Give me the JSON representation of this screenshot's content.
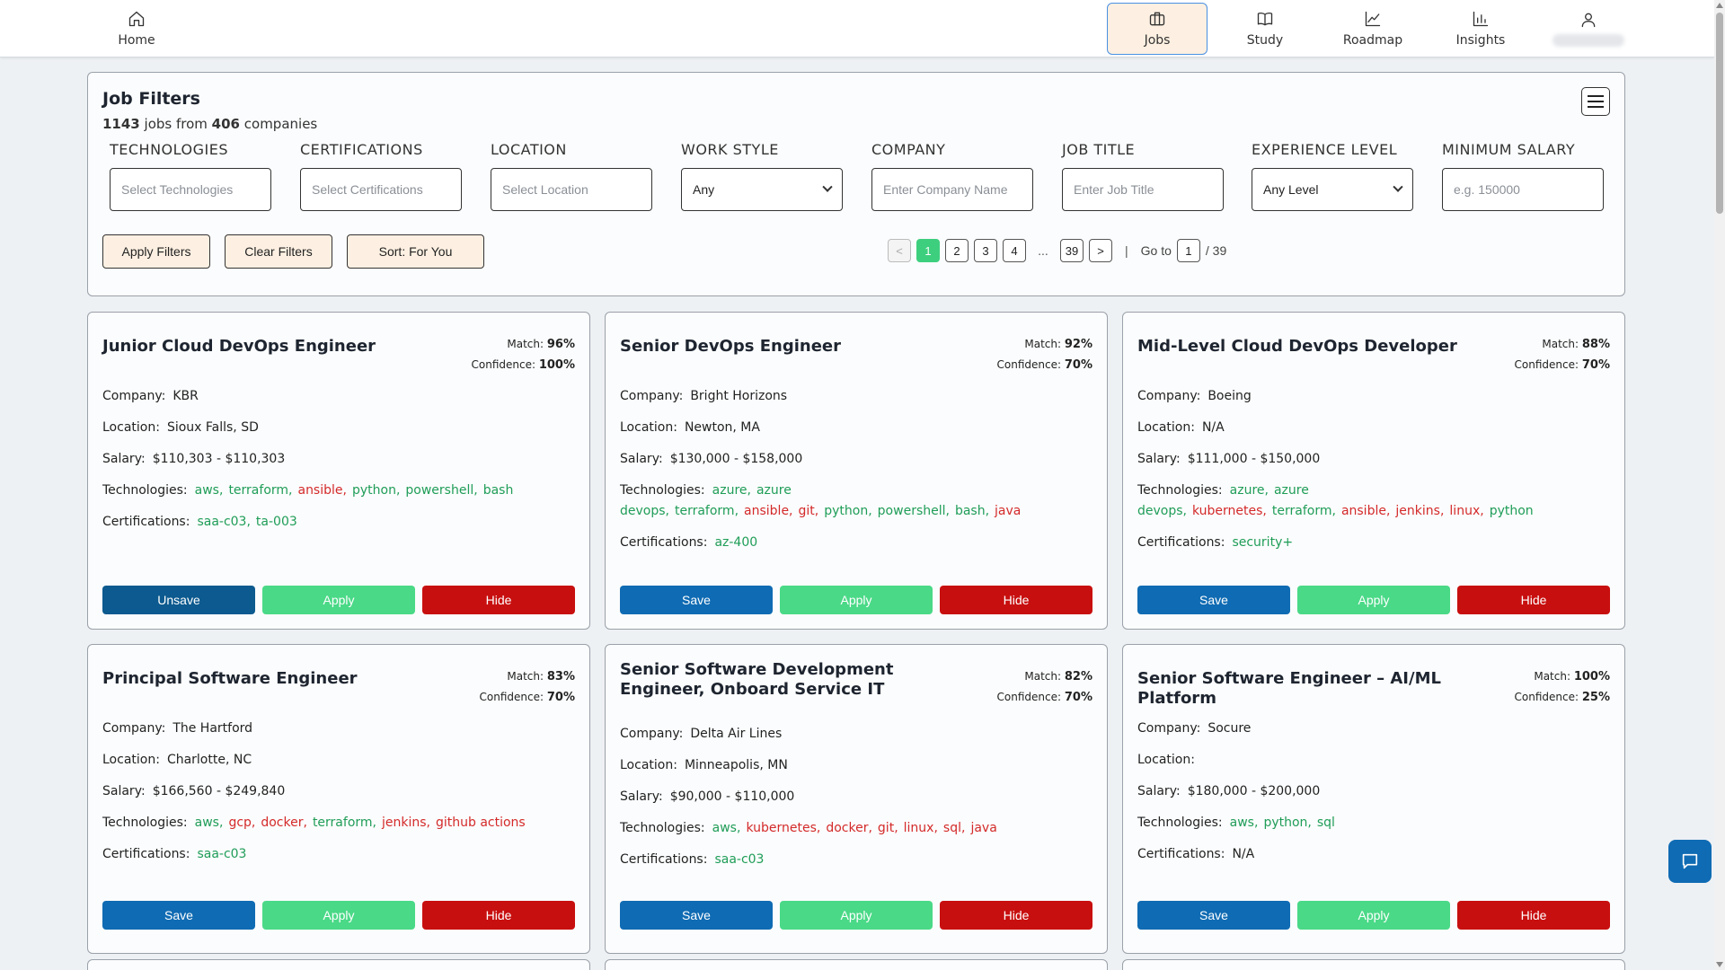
{
  "nav": {
    "home": "Home",
    "jobs": "Jobs",
    "study": "Study",
    "roadmap": "Roadmap",
    "insights": "Insights"
  },
  "filters": {
    "title": "Job Filters",
    "jobs_count": "1143",
    "jobs_from": "jobs from",
    "companies_count": "406",
    "companies_word": "companies",
    "technologies_label": "TECHNOLOGIES",
    "technologies_placeholder": "Select Technologies",
    "certifications_label": "CERTIFICATIONS",
    "certifications_placeholder": "Select Certifications",
    "location_label": "LOCATION",
    "location_placeholder": "Select Location",
    "work_style_label": "WORK STYLE",
    "work_style_value": "Any",
    "company_label": "COMPANY",
    "company_placeholder": "Enter Company Name",
    "job_title_label": "JOB TITLE",
    "job_title_placeholder": "Enter Job Title",
    "experience_label": "EXPERIENCE LEVEL",
    "experience_value": "Any Level",
    "salary_label": "MINIMUM SALARY",
    "salary_placeholder": "e.g. 150000",
    "apply_label": "Apply Filters",
    "clear_label": "Clear Filters",
    "sort_label": "Sort: For You"
  },
  "pagination": {
    "prev": "<",
    "pages": [
      "1",
      "2",
      "3",
      "4"
    ],
    "ellipsis": "...",
    "last": "39",
    "next": ">",
    "separator": "|",
    "goto_label": "Go to",
    "goto_value": "1",
    "total": "/ 39"
  },
  "labels": {
    "company": "Company:",
    "location": "Location:",
    "salary": "Salary:",
    "technologies": "Technologies:",
    "certifications": "Certifications:",
    "match": "Match:",
    "confidence": "Confidence:",
    "save": "Save",
    "unsave": "Unsave",
    "apply": "Apply",
    "hide": "Hide"
  },
  "jobs": [
    {
      "title": "Junior Cloud DevOps Engineer",
      "match": "96%",
      "confidence": "100%",
      "company": "KBR",
      "location": "Sioux Falls, SD",
      "salary": "$110,303 - $110,303",
      "technologies": [
        {
          "name": "aws,",
          "status": "match"
        },
        {
          "name": "terraform,",
          "status": "match"
        },
        {
          "name": "ansible,",
          "status": "missing"
        },
        {
          "name": "python,",
          "status": "match"
        },
        {
          "name": "powershell,",
          "status": "match"
        },
        {
          "name": "bash",
          "status": "match"
        }
      ],
      "certifications": [
        {
          "name": "saa-c03,",
          "status": "match"
        },
        {
          "name": "ta-003",
          "status": "match"
        }
      ],
      "saved": true
    },
    {
      "title": "Senior DevOps Engineer",
      "match": "92%",
      "confidence": "70%",
      "company": "Bright Horizons",
      "location": "Newton, MA",
      "salary": "$130,000 - $158,000",
      "technologies": [
        {
          "name": "azure,",
          "status": "match"
        },
        {
          "name": "azure devops,",
          "status": "match"
        },
        {
          "name": "terraform,",
          "status": "match"
        },
        {
          "name": "ansible,",
          "status": "missing"
        },
        {
          "name": "git,",
          "status": "missing"
        },
        {
          "name": "python,",
          "status": "match"
        },
        {
          "name": "powershell,",
          "status": "match"
        },
        {
          "name": "bash,",
          "status": "match"
        },
        {
          "name": "java",
          "status": "missing"
        }
      ],
      "certifications": [
        {
          "name": "az-400",
          "status": "match"
        }
      ],
      "saved": false
    },
    {
      "title": "Mid-Level Cloud DevOps Developer",
      "match": "88%",
      "confidence": "70%",
      "company": "Boeing",
      "location": "N/A",
      "salary": "$111,000 - $150,000",
      "technologies": [
        {
          "name": "azure,",
          "status": "match"
        },
        {
          "name": "azure devops,",
          "status": "match"
        },
        {
          "name": "kubernetes,",
          "status": "missing"
        },
        {
          "name": "terraform,",
          "status": "match"
        },
        {
          "name": "ansible,",
          "status": "missing"
        },
        {
          "name": "jenkins,",
          "status": "missing"
        },
        {
          "name": "linux,",
          "status": "missing"
        },
        {
          "name": "python",
          "status": "match"
        }
      ],
      "certifications": [
        {
          "name": "security+",
          "status": "match"
        }
      ],
      "saved": false
    },
    {
      "title": "Principal Software Engineer",
      "match": "83%",
      "confidence": "70%",
      "company": "The Hartford",
      "location": "Charlotte, NC",
      "salary": "$166,560 - $249,840",
      "technologies": [
        {
          "name": "aws,",
          "status": "match"
        },
        {
          "name": "gcp,",
          "status": "missing"
        },
        {
          "name": "docker,",
          "status": "missing"
        },
        {
          "name": "terraform,",
          "status": "match"
        },
        {
          "name": "jenkins,",
          "status": "missing"
        },
        {
          "name": "github actions",
          "status": "missing"
        }
      ],
      "certifications": [
        {
          "name": "saa-c03",
          "status": "match"
        }
      ],
      "saved": false
    },
    {
      "title": "Senior Software Development Engineer, Onboard Service IT",
      "match": "82%",
      "confidence": "70%",
      "company": "Delta Air Lines",
      "location": "Minneapolis, MN",
      "salary": "$90,000 - $110,000",
      "technologies": [
        {
          "name": "aws,",
          "status": "match"
        },
        {
          "name": "kubernetes,",
          "status": "missing"
        },
        {
          "name": "docker,",
          "status": "missing"
        },
        {
          "name": "git,",
          "status": "missing"
        },
        {
          "name": "linux,",
          "status": "missing"
        },
        {
          "name": "sql,",
          "status": "missing"
        },
        {
          "name": "java",
          "status": "missing"
        }
      ],
      "certifications": [
        {
          "name": "saa-c03",
          "status": "match"
        }
      ],
      "saved": false
    },
    {
      "title": "Senior Software Engineer – AI/ML Platform",
      "match": "100%",
      "confidence": "25%",
      "company": "Socure",
      "location": "",
      "salary": "$180,000 - $200,000",
      "technologies": [
        {
          "name": "aws,",
          "status": "match"
        },
        {
          "name": "python,",
          "status": "match"
        },
        {
          "name": "sql",
          "status": "match"
        }
      ],
      "certifications_text": "N/A",
      "certifications": [],
      "saved": false
    }
  ],
  "colors": {
    "match_tag": "#1f9d58",
    "missing_tag": "#d42a2a",
    "save": "#0f6bb3",
    "apply": "#4ad987",
    "hide": "#c80f0f",
    "active_page": "#3ecf7e",
    "accent_bg": "#fdf0e2"
  },
  "icons": {
    "home": "home-icon",
    "jobs": "briefcase-icon",
    "study": "book-icon",
    "roadmap": "line-chart-icon",
    "insights": "bar-chart-icon",
    "profile": "user-icon",
    "menu": "hamburger-icon",
    "chat": "chat-bubble-icon"
  }
}
